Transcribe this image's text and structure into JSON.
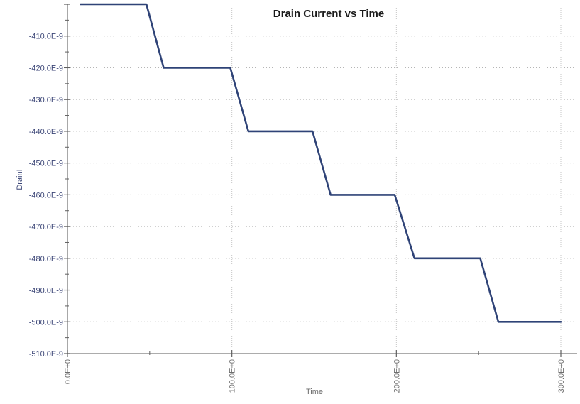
{
  "style": {
    "background": "#FFFFFF",
    "title_color": "#1A1A1A",
    "axis_line_color": "#7A7A7A",
    "tick_color": "#5F5F5F",
    "grid_color": "#B5B5B5",
    "vgrid_color": "#C4C4C4",
    "y_label_color": "#3C4677",
    "x_label_color": "#6E6E6E",
    "line_color": "#2F4377"
  },
  "chart_data": {
    "type": "line",
    "title": "Drain Current vs Time",
    "grid": true,
    "legend_position": "none",
    "x_axis": {
      "label": "Time",
      "range": [
        0,
        300
      ],
      "tick_label_rotation_deg": -90,
      "major_ticks": [
        {
          "value": 0,
          "label": "0.0E+0"
        },
        {
          "value": 100,
          "label": "100.0E+0"
        },
        {
          "value": 200,
          "label": "200.0E+0"
        },
        {
          "value": 300,
          "label": "300.0E+0"
        }
      ],
      "minor_ticks": [
        50,
        150,
        250
      ],
      "gridlines_at": [
        100,
        200,
        300
      ]
    },
    "y_axis": {
      "label": "DrainI",
      "units": "A",
      "range": [
        -5.1e-07,
        -4e-07
      ],
      "major_ticks": [
        {
          "value": -4e-07,
          "label": ""
        },
        {
          "value": -4.1e-07,
          "label": "-410.0E-9"
        },
        {
          "value": -4.2e-07,
          "label": "-420.0E-9"
        },
        {
          "value": -4.3e-07,
          "label": "-430.0E-9"
        },
        {
          "value": -4.4e-07,
          "label": "-440.0E-9"
        },
        {
          "value": -4.5e-07,
          "label": "-450.0E-9"
        },
        {
          "value": -4.6e-07,
          "label": "-460.0E-9"
        },
        {
          "value": -4.7e-07,
          "label": "-470.0E-9"
        },
        {
          "value": -4.8e-07,
          "label": "-480.0E-9"
        },
        {
          "value": -4.9e-07,
          "label": "-490.0E-9"
        },
        {
          "value": -5e-07,
          "label": "-500.0E-9"
        },
        {
          "value": -5.1e-07,
          "label": "-510.0E-9"
        }
      ],
      "minor_ticks": [
        -4.05e-07,
        -4.15e-07,
        -4.25e-07,
        -4.35e-07,
        -4.45e-07,
        -4.55e-07,
        -4.65e-07,
        -4.75e-07,
        -4.85e-07,
        -4.95e-07,
        -5.05e-07
      ],
      "gridlines_at": [
        -4.1e-07,
        -4.2e-07,
        -4.3e-07,
        -4.4e-07,
        -4.5e-07,
        -4.6e-07,
        -4.7e-07,
        -4.8e-07,
        -4.9e-07,
        -5e-07
      ]
    },
    "series": [
      {
        "name": "DrainI",
        "color": "#2F4377",
        "points": [
          [
            8,
            -4e-07
          ],
          [
            48,
            -4e-07
          ],
          [
            58.5,
            -4.2e-07
          ],
          [
            99,
            -4.2e-07
          ],
          [
            110,
            -4.4e-07
          ],
          [
            149,
            -4.4e-07
          ],
          [
            160,
            -4.6e-07
          ],
          [
            199,
            -4.6e-07
          ],
          [
            211,
            -4.8e-07
          ],
          [
            251,
            -4.8e-07
          ],
          [
            262,
            -5e-07
          ],
          [
            300,
            -5e-07
          ]
        ]
      }
    ]
  }
}
